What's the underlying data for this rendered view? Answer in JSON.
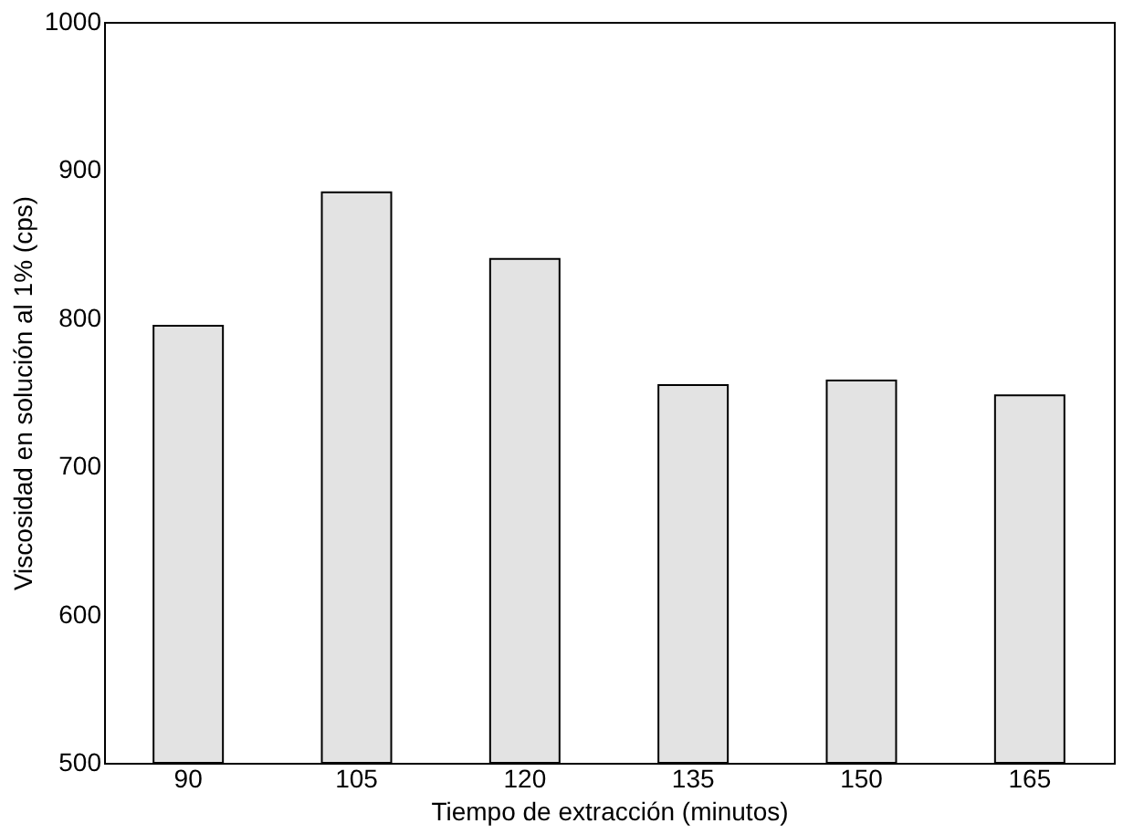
{
  "chart_data": {
    "type": "bar",
    "xlabel": "Tiempo de extracción (minutos)",
    "ylabel": "Viscosidad en solución al 1% (cps)",
    "categories": [
      "90",
      "105",
      "120",
      "135",
      "150",
      "165"
    ],
    "values": [
      795,
      885,
      840,
      755,
      758,
      748
    ],
    "color": "#e3e3e3",
    "ylim": [
      500,
      1000
    ],
    "yticks": [
      500,
      600,
      700,
      800,
      900,
      1000
    ],
    "grid": false
  }
}
